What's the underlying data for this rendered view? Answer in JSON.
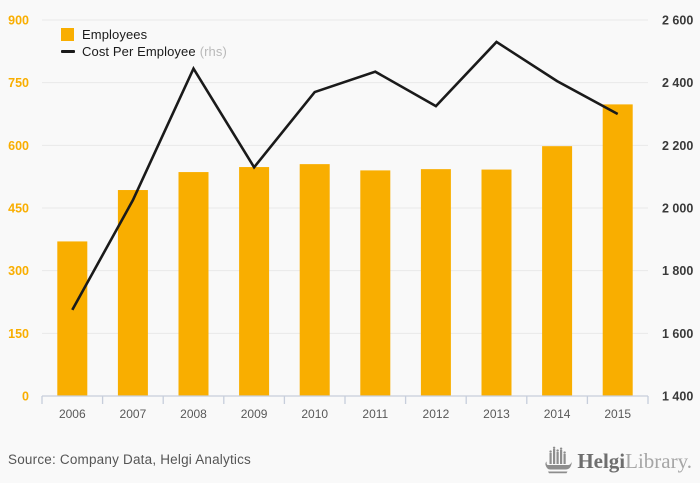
{
  "legend": {
    "employees_label": "Employees",
    "cost_label": "Cost Per Employee",
    "rhs_suffix": "(rhs)"
  },
  "footer": {
    "source": "Source: Company Data, Helgi Analytics",
    "brand_bold": "Helgi",
    "brand_light": "Library."
  },
  "colors": {
    "bar": "#F9AE00",
    "line": "#1A1A1A",
    "left_axis_labels": "#F9AE00",
    "right_axis_labels": "#3A3A3A",
    "x_axis_labels": "#595959",
    "gridline": "#E9E9E9",
    "axis_line": "#C7CEDB",
    "rhs_text": "#B9B9B9",
    "background": "#F9F9F9"
  },
  "chart_data": {
    "type": "bar",
    "subtype": "combo-bar-line",
    "categories": [
      "2006",
      "2007",
      "2008",
      "2009",
      "2010",
      "2011",
      "2012",
      "2013",
      "2014",
      "2015"
    ],
    "series": [
      {
        "name": "Employees",
        "render": "bar",
        "axis": "left",
        "values": [
          370,
          493,
          536,
          548,
          555,
          540,
          543,
          542,
          598,
          698
        ]
      },
      {
        "name": "Cost Per Employee",
        "render": "line",
        "axis": "right",
        "values": [
          1675,
          2025,
          2445,
          2130,
          2370,
          2435,
          2325,
          2530,
          2405,
          2300
        ]
      }
    ],
    "title": "",
    "xlabel": "",
    "ylabel_left": "",
    "ylabel_right": "",
    "left_axis": {
      "min": 0,
      "max": 900,
      "step": 150
    },
    "right_axis": {
      "min": 1400,
      "max": 2600,
      "step": 200,
      "thousands_separator": " "
    },
    "legend_position": "top-left",
    "grid": "horizontal"
  }
}
